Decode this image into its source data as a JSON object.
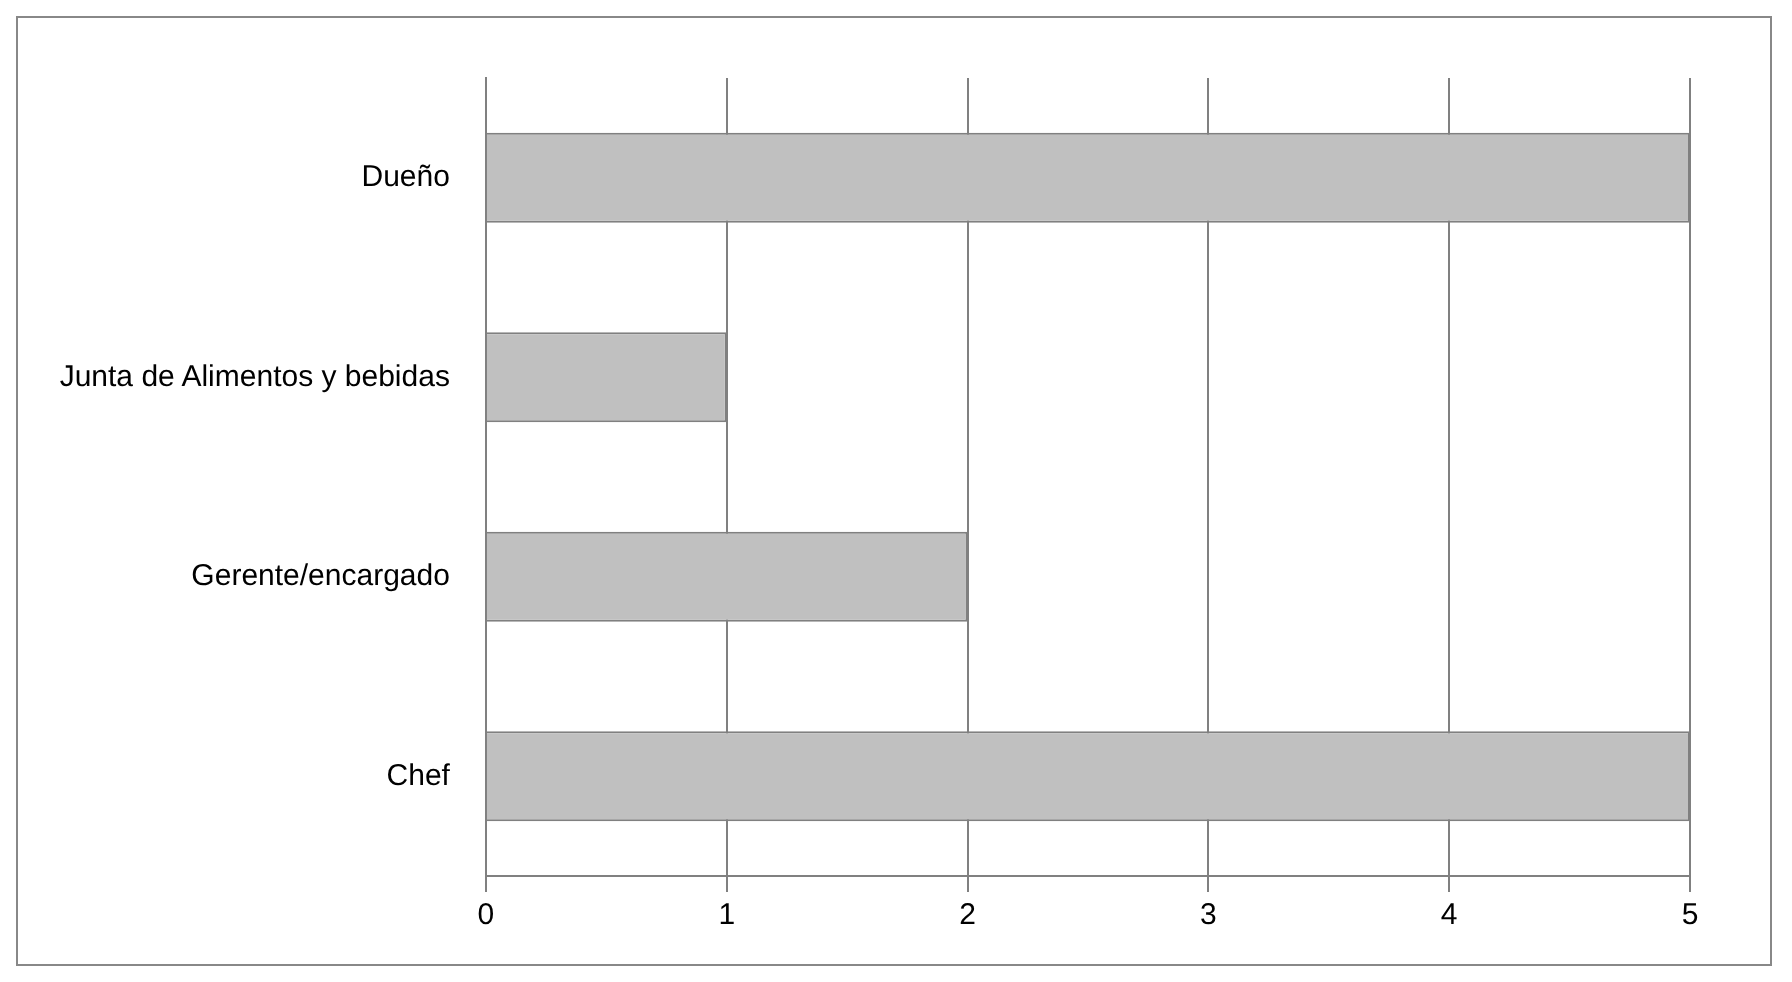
{
  "chart_data": {
    "type": "bar",
    "orientation": "horizontal",
    "categories": [
      "Dueño",
      "Junta de Alimentos y bebidas",
      "Gerente/encargado",
      "Chef"
    ],
    "values": [
      5,
      1,
      2,
      5
    ],
    "color": "#c0c0c0",
    "xlim": [
      0,
      5
    ],
    "xticks": [
      0,
      1,
      2,
      3,
      4,
      5
    ],
    "grid": "x",
    "legend": false
  }
}
